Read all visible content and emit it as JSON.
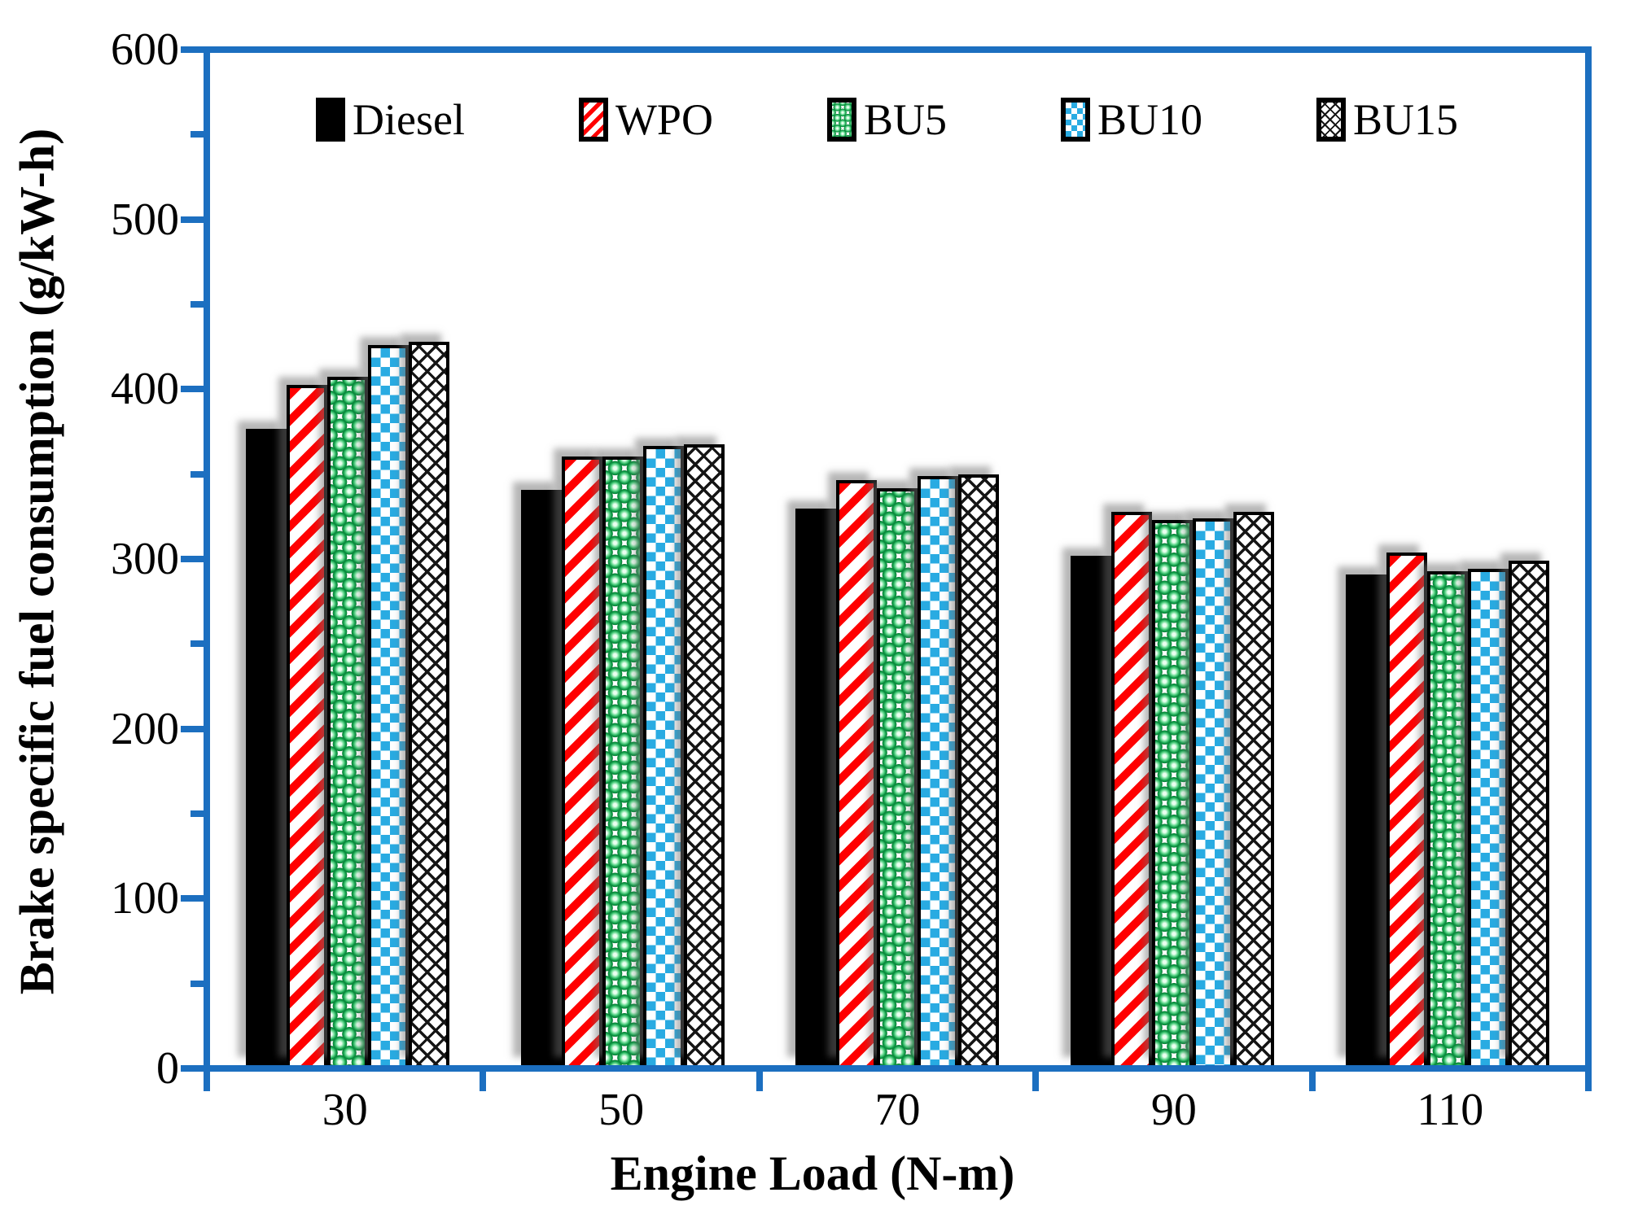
{
  "chart_data": {
    "type": "bar",
    "title": "",
    "xlabel": "Engine Load (N-m)",
    "ylabel": "Brake specific fuel consumption (g/kW-h)",
    "ylim": [
      0,
      600
    ],
    "ytick_major_step": 100,
    "ytick_minor_step": 50,
    "ytick_labels": [
      "0",
      "100",
      "200",
      "300",
      "400",
      "500",
      "600"
    ],
    "grid": false,
    "legend_position": "top-inside",
    "categories": [
      "30",
      "50",
      "70",
      "90",
      "110"
    ],
    "series": [
      {
        "name": "Diesel",
        "pattern": "solid-black",
        "values": [
          377,
          341,
          330,
          302,
          291
        ]
      },
      {
        "name": "WPO",
        "pattern": "red-diagonal-stripes",
        "values": [
          403,
          361,
          347,
          328,
          304
        ]
      },
      {
        "name": "BU5",
        "pattern": "green-glossy-dots",
        "values": [
          408,
          361,
          342,
          323,
          293
        ]
      },
      {
        "name": "BU10",
        "pattern": "blue-checkerboard",
        "values": [
          427,
          367,
          349,
          324,
          294
        ]
      },
      {
        "name": "BU15",
        "pattern": "black-crosshatch",
        "values": [
          429,
          368,
          350,
          328,
          299
        ]
      }
    ]
  },
  "colors": {
    "axis_frame": "#1C6FC0",
    "diesel_black": "#000000",
    "wpo_red": "#FF0000",
    "bu5_green": "#12A14B",
    "bu10_blue": "#29ABE2",
    "bu15_black": "#151515"
  }
}
